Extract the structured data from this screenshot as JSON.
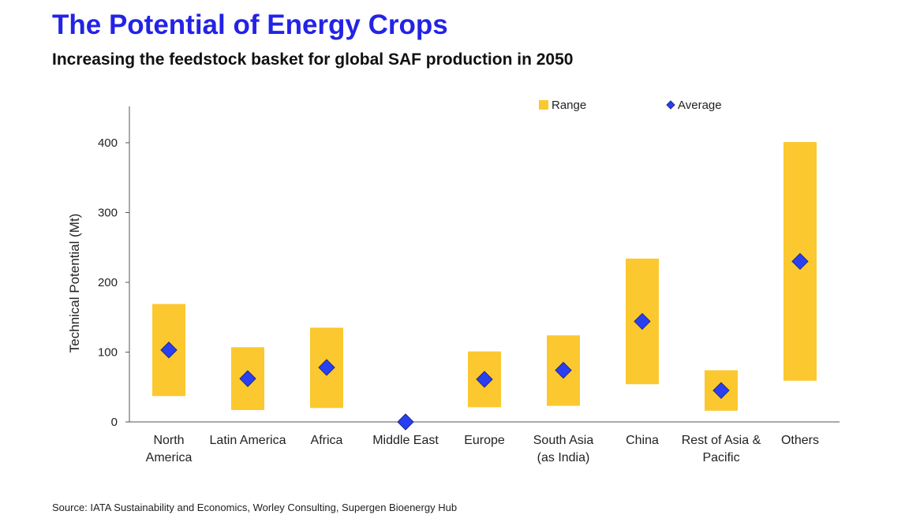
{
  "header": {
    "title": "The Potential of Energy Crops",
    "subtitle": "Increasing the feedstock basket for global SAF production in 2050"
  },
  "footer": {
    "source": "Source: IATA Sustainability and Economics, Worley Consulting, Supergen Bioenergy Hub"
  },
  "chart_data": {
    "type": "range-bar",
    "ylabel": "Technical Potential (Mt)",
    "ylim": [
      0,
      450
    ],
    "yticks": [
      0,
      100,
      200,
      300,
      400
    ],
    "grid": false,
    "legend": {
      "placement": "top-right",
      "range_label": "Range",
      "average_label": "Average"
    },
    "categories": [
      [
        "North",
        "America"
      ],
      [
        "Latin America"
      ],
      [
        "Africa"
      ],
      [
        "Middle East"
      ],
      [
        "Europe"
      ],
      [
        "South Asia",
        "(as India)"
      ],
      [
        "China"
      ],
      [
        "Rest of Asia &",
        "Pacific"
      ],
      [
        "Others"
      ]
    ],
    "range_low": [
      37,
      17,
      20,
      0,
      21,
      23,
      54,
      16,
      59
    ],
    "range_high": [
      169,
      107,
      135,
      0,
      101,
      124,
      234,
      74,
      401
    ],
    "average": [
      103,
      62,
      78,
      0,
      61,
      74,
      144,
      45,
      230
    ],
    "colors": {
      "range": "#fbc82f",
      "average": "#2a3ff0",
      "average_outline": "#1d2c8a",
      "axis": "#555555"
    }
  }
}
